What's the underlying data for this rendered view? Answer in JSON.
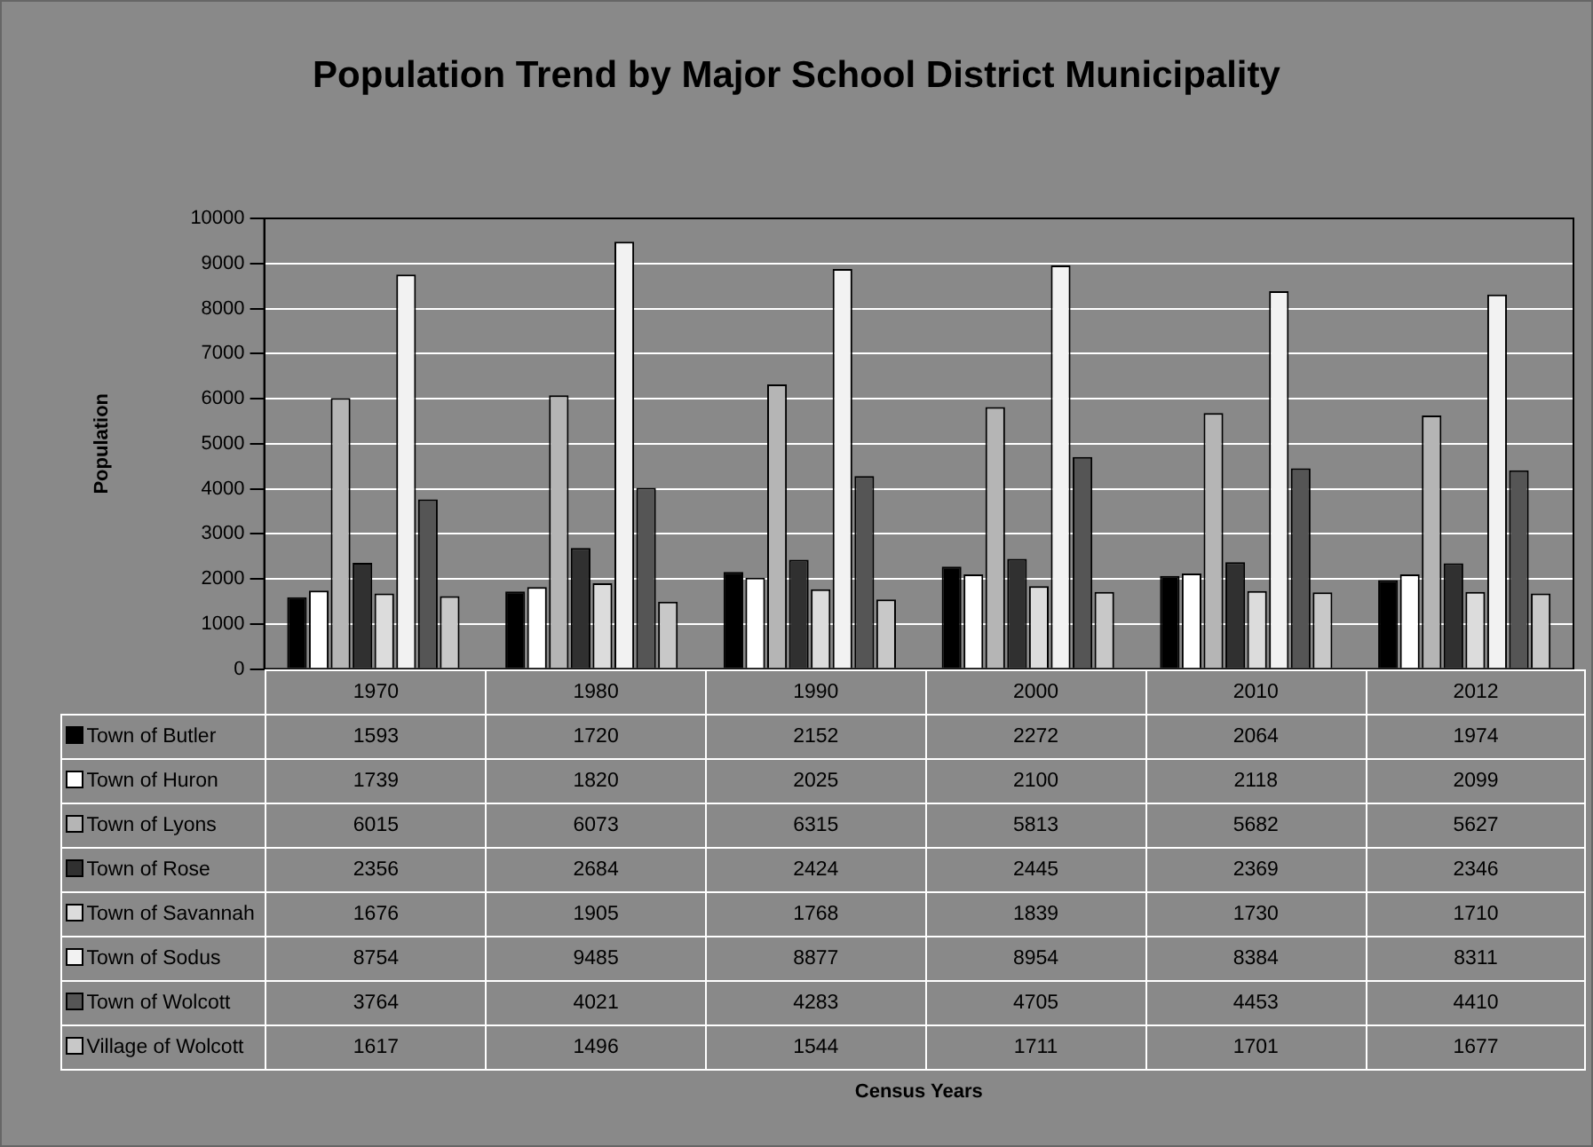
{
  "chart_data": {
    "type": "bar",
    "title": "Population Trend by Major School District Municipality",
    "annotations": [
      "Census Years"
    ],
    "ylabel": "Population",
    "categories": [
      "1970",
      "1980",
      "1990",
      "2000",
      "2010",
      "2012"
    ],
    "series": [
      {
        "name": "Town of Butler",
        "color": "#000000",
        "values": [
          1593,
          1720,
          2152,
          2272,
          2064,
          1974
        ]
      },
      {
        "name": "Town of Huron",
        "color": "#ffffff",
        "values": [
          1739,
          1820,
          2025,
          2100,
          2118,
          2099
        ]
      },
      {
        "name": "Town of Lyons",
        "color": "#b5b5b5",
        "values": [
          6015,
          6073,
          6315,
          5813,
          5682,
          5627
        ]
      },
      {
        "name": "Town of Rose",
        "color": "#303030",
        "values": [
          2356,
          2684,
          2424,
          2445,
          2369,
          2346
        ]
      },
      {
        "name": "Town of Savannah",
        "color": "#dcdcdc",
        "values": [
          1676,
          1905,
          1768,
          1839,
          1730,
          1710
        ]
      },
      {
        "name": "Town of Sodus",
        "color": "#f2f2f2",
        "values": [
          8754,
          9485,
          8877,
          8954,
          8384,
          8311
        ]
      },
      {
        "name": "Town of Wolcott",
        "color": "#555555",
        "values": [
          3764,
          4021,
          4283,
          4705,
          4453,
          4410
        ]
      },
      {
        "name": "Village of Wolcott",
        "color": "#c8c8c8",
        "values": [
          1617,
          1496,
          1544,
          1711,
          1701,
          1677
        ]
      }
    ],
    "ylim": [
      0,
      10000
    ],
    "yticks": [
      0,
      1000,
      2000,
      3000,
      4000,
      5000,
      6000,
      7000,
      8000,
      9000,
      10000
    ],
    "grid": "y",
    "legend": "bottom",
    "data_labels": true
  }
}
